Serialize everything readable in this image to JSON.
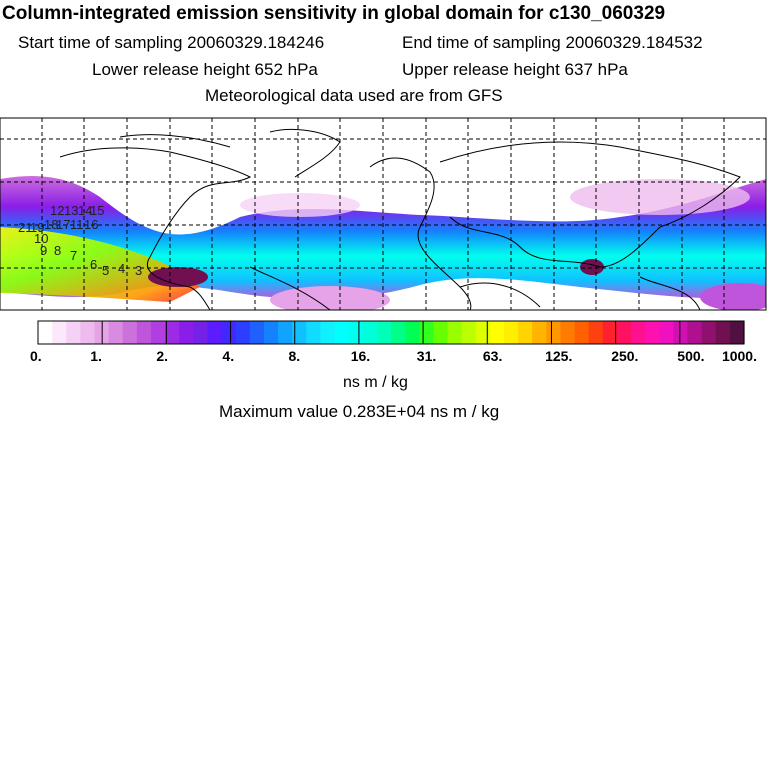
{
  "header": {
    "title": "Column-integrated emission sensitivity in global domain for c130_060329",
    "start_label": "Start time of sampling 20060329.184246",
    "end_label": "End time of sampling 20060329.184532",
    "lower_label": "Lower release height  652 hPa",
    "upper_label": "Upper release height  637 hPa",
    "met_label": "Meteorological data used are from GFS"
  },
  "colorbar": {
    "ticks": [
      "0.",
      "1.",
      "2.",
      "4.",
      "8.",
      "16.",
      "31.",
      "63.",
      "125.",
      "250.",
      "500.",
      "1000."
    ],
    "colors": [
      "#ffffff",
      "#fbe9fb",
      "#f5d2f5",
      "#eebbee",
      "#e6a3e8",
      "#d98be0",
      "#cc70dc",
      "#bf55da",
      "#b03ee0",
      "#9d2be6",
      "#8a1de8",
      "#7422e8",
      "#5c1cff",
      "#4327ff",
      "#2c3eff",
      "#1f60ff",
      "#1482ff",
      "#10a3ff",
      "#10c0ff",
      "#10dcff",
      "#10f0ff",
      "#00ffff",
      "#00ffee",
      "#00ffd8",
      "#00ffb8",
      "#00ff88",
      "#00ff55",
      "#30ff20",
      "#66ff00",
      "#99ff00",
      "#bbff00",
      "#ddff00",
      "#ffff00",
      "#ffee00",
      "#ffd400",
      "#ffb400",
      "#ff9800",
      "#ff7c00",
      "#ff6000",
      "#ff4010",
      "#ff2030",
      "#ff1060",
      "#ff1090",
      "#ff10b0",
      "#f010c0",
      "#d010b0",
      "#b01090",
      "#901070",
      "#701050",
      "#501040"
    ],
    "unit": "ns m / kg"
  },
  "max_label": "Maximum value  0.283E+04 ns m / kg",
  "map_labels": [
    "21",
    "19",
    "18",
    "17",
    "16",
    "15",
    "14",
    "13",
    "12",
    "11",
    "10",
    "9",
    "8",
    "7",
    "6",
    "5",
    "4",
    "3"
  ]
}
